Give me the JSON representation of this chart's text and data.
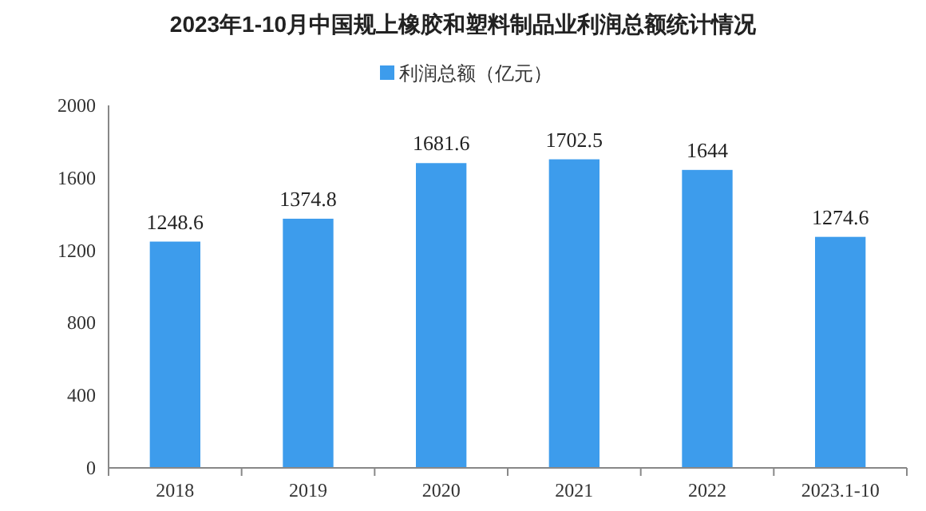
{
  "chart_data": {
    "type": "bar",
    "title": "2023年1-10月中国规上橡胶和塑料制品业利润总额统计情况",
    "categories": [
      "2018",
      "2019",
      "2020",
      "2021",
      "2022",
      "2023.1-10"
    ],
    "series": [
      {
        "name": "利润总额（亿元）",
        "color": "#3d9cec",
        "values": [
          1248.6,
          1374.8,
          1681.6,
          1702.5,
          1644,
          1274.6
        ]
      }
    ],
    "ylim": [
      0,
      2000
    ],
    "yticks": [
      0,
      400,
      800,
      1200,
      1600,
      2000
    ],
    "data_labels": true,
    "legend": "top",
    "grid": false
  }
}
